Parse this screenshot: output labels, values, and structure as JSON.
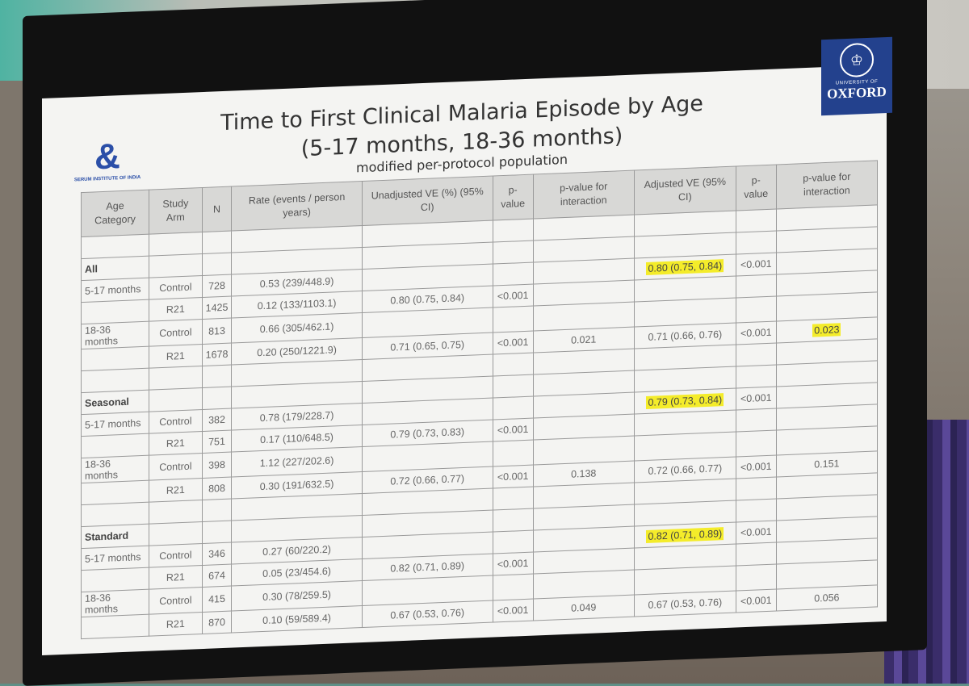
{
  "slide": {
    "title_line1": "Time to First Clinical Malaria Episode by Age",
    "title_line2": "(5-17 months, 18-36 months)",
    "subtitle": "modified per-protocol population",
    "left_logo_text": "SERUM INSTITUTE OF INDIA",
    "right_logo_small": "UNIVERSITY OF",
    "right_logo_big": "OXFORD",
    "highlight_color": "#f4ec2a"
  },
  "table": {
    "headers": [
      "Age Category",
      "Study Arm",
      "N",
      "Rate (events / person years)",
      "Unadjusted VE (%) (95% CI)",
      "p-value",
      "p-value for interaction",
      "Adjusted VE (95% CI)",
      "p-value",
      "p-value for interaction"
    ],
    "groups": [
      {
        "name": "All",
        "bands": [
          {
            "age": "5-17 months",
            "control": {
              "arm": "Control",
              "n": "728",
              "rate": "0.53 (239/448.9)"
            },
            "r21": {
              "arm": "R21",
              "n": "1425",
              "rate": "0.12 (133/1103.1)"
            },
            "unadj_ve": "0.80 (0.75, 0.84)",
            "p": "<0.001",
            "p_int": "",
            "adj_ve": "0.80 (0.75, 0.84)",
            "adj_p": "<0.001",
            "adj_p_int": "",
            "hl_adj_ve": true,
            "hl_adj_p_int": false
          },
          {
            "age": "18-36 months",
            "control": {
              "arm": "Control",
              "n": "813",
              "rate": "0.66 (305/462.1)"
            },
            "r21": {
              "arm": "R21",
              "n": "1678",
              "rate": "0.20 (250/1221.9)"
            },
            "unadj_ve": "0.71 (0.65, 0.75)",
            "p": "<0.001",
            "p_int": "0.021",
            "adj_ve": "0.71 (0.66, 0.76)",
            "adj_p": "<0.001",
            "adj_p_int": "0.023",
            "hl_adj_ve": false,
            "hl_adj_p_int": true
          }
        ]
      },
      {
        "name": "Seasonal",
        "bands": [
          {
            "age": "5-17 months",
            "control": {
              "arm": "Control",
              "n": "382",
              "rate": "0.78 (179/228.7)"
            },
            "r21": {
              "arm": "R21",
              "n": "751",
              "rate": "0.17 (110/648.5)"
            },
            "unadj_ve": "0.79 (0.73, 0.83)",
            "p": "<0.001",
            "p_int": "",
            "adj_ve": "0.79 (0.73, 0.84)",
            "adj_p": "<0.001",
            "adj_p_int": "",
            "hl_adj_ve": true,
            "hl_adj_p_int": false
          },
          {
            "age": "18-36 months",
            "control": {
              "arm": "Control",
              "n": "398",
              "rate": "1.12 (227/202.6)"
            },
            "r21": {
              "arm": "R21",
              "n": "808",
              "rate": "0.30 (191/632.5)"
            },
            "unadj_ve": "0.72 (0.66, 0.77)",
            "p": "<0.001",
            "p_int": "0.138",
            "adj_ve": "0.72 (0.66, 0.77)",
            "adj_p": "<0.001",
            "adj_p_int": "0.151",
            "hl_adj_ve": false,
            "hl_adj_p_int": false
          }
        ]
      },
      {
        "name": "Standard",
        "bands": [
          {
            "age": "5-17 months",
            "control": {
              "arm": "Control",
              "n": "346",
              "rate": "0.27 (60/220.2)"
            },
            "r21": {
              "arm": "R21",
              "n": "674",
              "rate": "0.05 (23/454.6)"
            },
            "unadj_ve": "0.82 (0.71, 0.89)",
            "p": "<0.001",
            "p_int": "",
            "adj_ve": "0.82 (0.71, 0.89)",
            "adj_p": "<0.001",
            "adj_p_int": "",
            "hl_adj_ve": true,
            "hl_adj_p_int": false
          },
          {
            "age": "18-36 months",
            "control": {
              "arm": "Control",
              "n": "415",
              "rate": "0.30 (78/259.5)"
            },
            "r21": {
              "arm": "R21",
              "n": "870",
              "rate": "0.10 (59/589.4)"
            },
            "unadj_ve": "0.67 (0.53, 0.76)",
            "p": "<0.001",
            "p_int": "0.049",
            "adj_ve": "0.67 (0.53, 0.76)",
            "adj_p": "<0.001",
            "adj_p_int": "0.056",
            "hl_adj_ve": false,
            "hl_adj_p_int": false
          }
        ]
      }
    ]
  }
}
